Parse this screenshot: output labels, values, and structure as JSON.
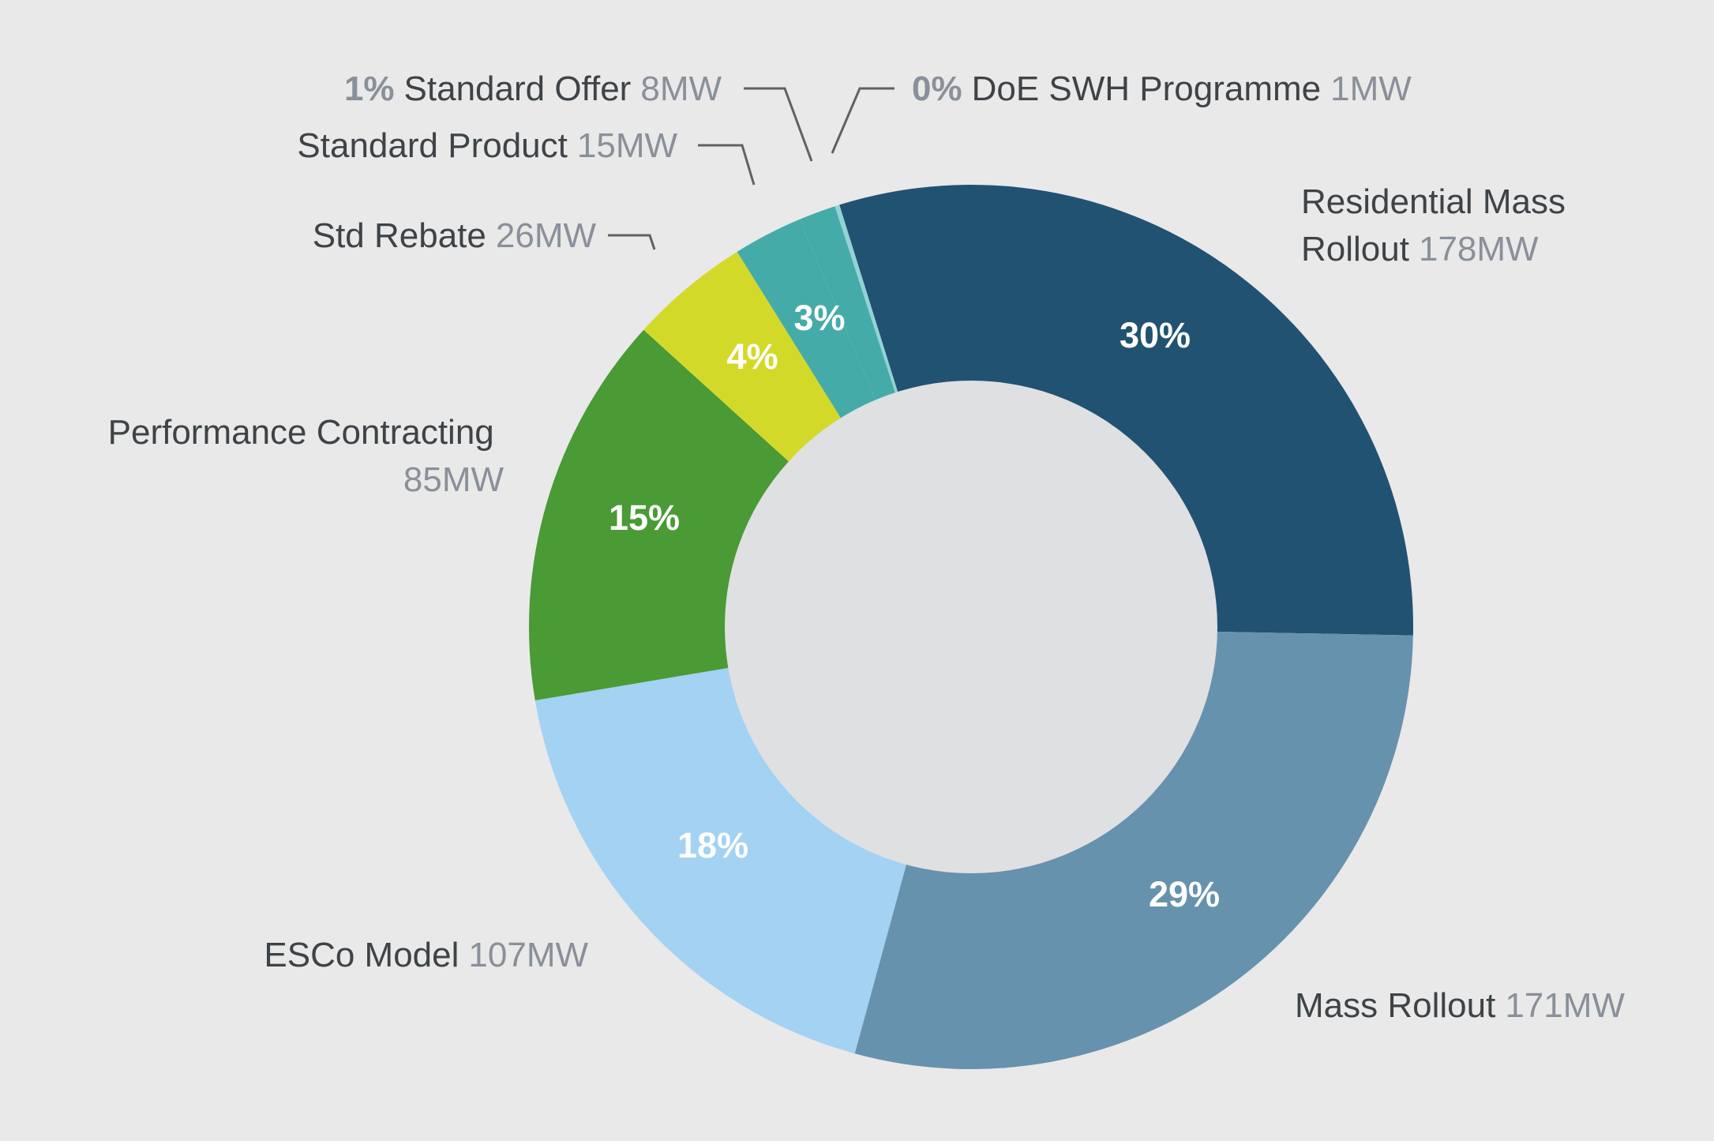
{
  "chart_data": {
    "type": "pie",
    "variant": "donut",
    "unit": "MW",
    "slices": [
      {
        "id": "residential-mass-rollout",
        "name_lines": [
          "Residential Mass",
          "Rollout"
        ],
        "mw": 178,
        "mw_label": "178MW",
        "pct_label": "30%",
        "color": "#215272"
      },
      {
        "id": "mass-rollout",
        "name_lines": [
          "Mass Rollout"
        ],
        "mw": 171,
        "mw_label": "171MW",
        "pct_label": "29%",
        "color": "#6792ad"
      },
      {
        "id": "esco-model",
        "name_lines": [
          "ESCo Model"
        ],
        "mw": 107,
        "mw_label": "107MW",
        "pct_label": "18%",
        "color": "#a3d2f2"
      },
      {
        "id": "performance-contracting",
        "name_lines": [
          "Performance Contracting"
        ],
        "mw": 85,
        "mw_label": "85MW",
        "pct_label": "15%",
        "color": "#4a9a35"
      },
      {
        "id": "std-rebate",
        "name_lines": [
          "Std Rebate"
        ],
        "mw": 26,
        "mw_label": "26MW",
        "pct_label": "4%",
        "color": "#d3d929"
      },
      {
        "id": "standard-product",
        "name_lines": [
          "Standard Product"
        ],
        "mw": 15,
        "mw_label": "15MW",
        "pct_label": "3%",
        "color": "#45aba8"
      },
      {
        "id": "standard-offer",
        "name_lines": [
          "Standard Offer"
        ],
        "mw": 8,
        "mw_label": "8MW",
        "pct_label": "1%",
        "color": "#45aba8"
      },
      {
        "id": "doe-swh-programme",
        "name_lines": [
          "DoE SWH Programme"
        ],
        "mw": 1,
        "mw_label": "1MW",
        "pct_label": "0%",
        "color": "#93d3d3"
      }
    ],
    "inner_color": "#dfe0e2"
  }
}
